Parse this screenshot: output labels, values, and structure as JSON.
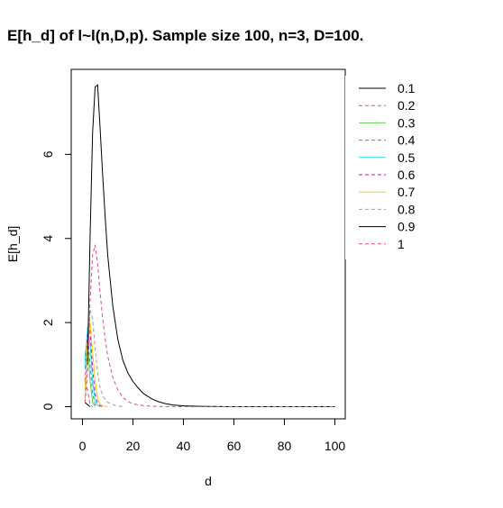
{
  "chart_data": {
    "type": "line",
    "title": "E[h_d] of l~l(n,D,p). Sample size 100, n=3, D=100.",
    "xlabel": "d",
    "ylabel": "E[h_d]",
    "xlim": [
      0,
      100
    ],
    "ylim": [
      0,
      7.7
    ],
    "x_ticks": [
      0,
      20,
      40,
      60,
      80,
      100
    ],
    "y_ticks": [
      0,
      2,
      4,
      6
    ],
    "legend_position": "top-right",
    "series": [
      {
        "name": "0.1",
        "color": "#000000",
        "dash": "solid",
        "x": [
          1,
          2,
          3
        ],
        "y": [
          0.1,
          0.05,
          0
        ]
      },
      {
        "name": "0.2",
        "color": "#DF536B",
        "dash": "dashed",
        "x": [
          1,
          2,
          3,
          4
        ],
        "y": [
          0.6,
          0.4,
          0.05,
          0
        ]
      },
      {
        "name": "0.3",
        "color": "#61D04F",
        "dash": "solid",
        "x": [
          1,
          2,
          3,
          4,
          5
        ],
        "y": [
          1.2,
          1.6,
          0.6,
          0.1,
          0
        ]
      },
      {
        "name": "0.4",
        "color": "#2297E6",
        "dash": "dashed",
        "x": [
          1,
          2,
          3,
          4,
          5,
          6
        ],
        "y": [
          1.1,
          1.8,
          1.0,
          0.3,
          0.05,
          0
        ]
      },
      {
        "name": "0.5",
        "color": "#28E2E5",
        "dash": "solid",
        "x": [
          1,
          2,
          3,
          4,
          5,
          6,
          7
        ],
        "y": [
          0.9,
          1.9,
          1.5,
          0.6,
          0.15,
          0.03,
          0
        ]
      },
      {
        "name": "0.6",
        "color": "#CD0BBC",
        "dash": "dashed",
        "x": [
          1,
          2,
          3,
          4,
          5,
          6,
          7,
          8
        ],
        "y": [
          0.6,
          1.7,
          1.8,
          0.9,
          0.3,
          0.08,
          0.02,
          0
        ]
      },
      {
        "name": "0.7",
        "color": "#F5C710",
        "dash": "solid",
        "x": [
          1,
          2,
          3,
          4,
          5,
          6,
          7,
          8,
          10
        ],
        "y": [
          0.4,
          1.5,
          2.0,
          1.3,
          0.6,
          0.2,
          0.06,
          0.02,
          0
        ]
      },
      {
        "name": "0.8",
        "color": "#9E9E9E",
        "dash": "dashed",
        "x": [
          1,
          2,
          3,
          4,
          5,
          6,
          7,
          8,
          10,
          13,
          16
        ],
        "y": [
          0.2,
          1.1,
          2.3,
          2.1,
          1.4,
          0.8,
          0.45,
          0.25,
          0.1,
          0.03,
          0
        ]
      },
      {
        "name": "0.9",
        "color": "#000000",
        "dash": "solid",
        "x": [
          2,
          3,
          4,
          5,
          6,
          7,
          8,
          9,
          10,
          12,
          14,
          16,
          18,
          20,
          22,
          24,
          26,
          28,
          30,
          33,
          36,
          40,
          45,
          50,
          60,
          70,
          80,
          90,
          100
        ],
        "y": [
          1.0,
          4.0,
          6.5,
          7.6,
          7.65,
          6.6,
          5.5,
          4.5,
          3.6,
          2.4,
          1.6,
          1.1,
          0.8,
          0.6,
          0.45,
          0.32,
          0.24,
          0.17,
          0.12,
          0.07,
          0.04,
          0.02,
          0.01,
          0.005,
          0,
          0,
          0,
          0,
          0
        ]
      },
      {
        "name": "1",
        "color": "#DF536B",
        "dash": "dashed",
        "x": [
          1,
          2,
          3,
          4,
          5,
          6,
          7,
          8,
          9,
          10,
          12,
          14,
          16,
          18,
          20,
          22,
          25,
          30,
          40,
          60,
          80,
          100
        ],
        "y": [
          0.1,
          0.8,
          2.5,
          3.6,
          3.85,
          3.4,
          2.7,
          2.1,
          1.6,
          1.2,
          0.7,
          0.4,
          0.22,
          0.12,
          0.07,
          0.04,
          0.02,
          0.005,
          0,
          0,
          0,
          0
        ]
      }
    ]
  }
}
